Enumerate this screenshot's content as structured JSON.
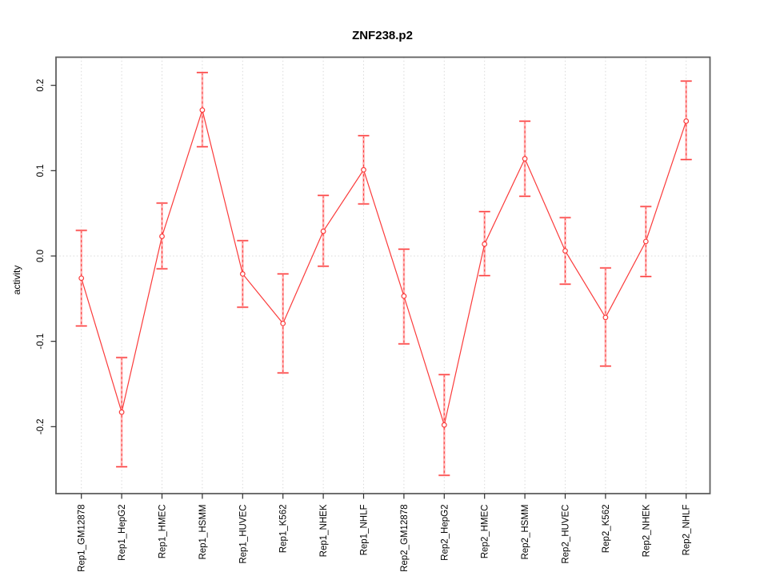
{
  "chart_data": {
    "type": "line",
    "title": "ZNF238.p2",
    "ylabel": "activity",
    "xlabel": "",
    "legend": "none",
    "grid": {
      "vertical_dotted": true,
      "zero_line_dotted": true
    },
    "x_label_rotation": 90,
    "ylim": [
      -0.278,
      0.233
    ],
    "y_ticks": [
      0.2,
      0.1,
      0.0,
      -0.1,
      -0.2
    ],
    "y_tick_labels": [
      "0.2",
      "0.1",
      "0.0",
      "-0.1",
      "-0.2"
    ],
    "categories": [
      "Rep1_GM12878",
      "Rep1_HepG2",
      "Rep1_HMEC",
      "Rep1_HSMM",
      "Rep1_HUVEC",
      "Rep1_K562",
      "Rep1_NHEK",
      "Rep1_NHLF",
      "Rep2_GM12878",
      "Rep2_HepG2",
      "Rep2_HMEC",
      "Rep2_HSMM",
      "Rep2_HUVEC",
      "Rep2_K562",
      "Rep2_NHEK",
      "Rep2_NHLF"
    ],
    "values": [
      -0.026,
      -0.183,
      0.023,
      0.171,
      -0.021,
      -0.079,
      0.029,
      0.101,
      -0.047,
      -0.198,
      0.014,
      0.114,
      0.006,
      -0.072,
      0.017,
      0.158
    ],
    "ci_low": [
      -0.082,
      -0.247,
      -0.015,
      0.128,
      -0.06,
      -0.137,
      -0.012,
      0.061,
      -0.103,
      -0.257,
      -0.023,
      0.07,
      -0.033,
      -0.129,
      -0.024,
      0.113
    ],
    "ci_high": [
      0.03,
      -0.119,
      0.062,
      0.215,
      0.018,
      -0.021,
      0.071,
      0.141,
      0.008,
      -0.139,
      0.052,
      0.158,
      0.045,
      -0.014,
      0.058,
      0.205
    ],
    "marker": "open-circle",
    "colors": {
      "line": "#fb3b3b",
      "bar_stem": "#ffb6b6",
      "grid": "#d9d9d9",
      "box": "#5f5f5f",
      "tick": "#2e2e2e",
      "text": "#000000",
      "background": "#ffffff"
    }
  }
}
